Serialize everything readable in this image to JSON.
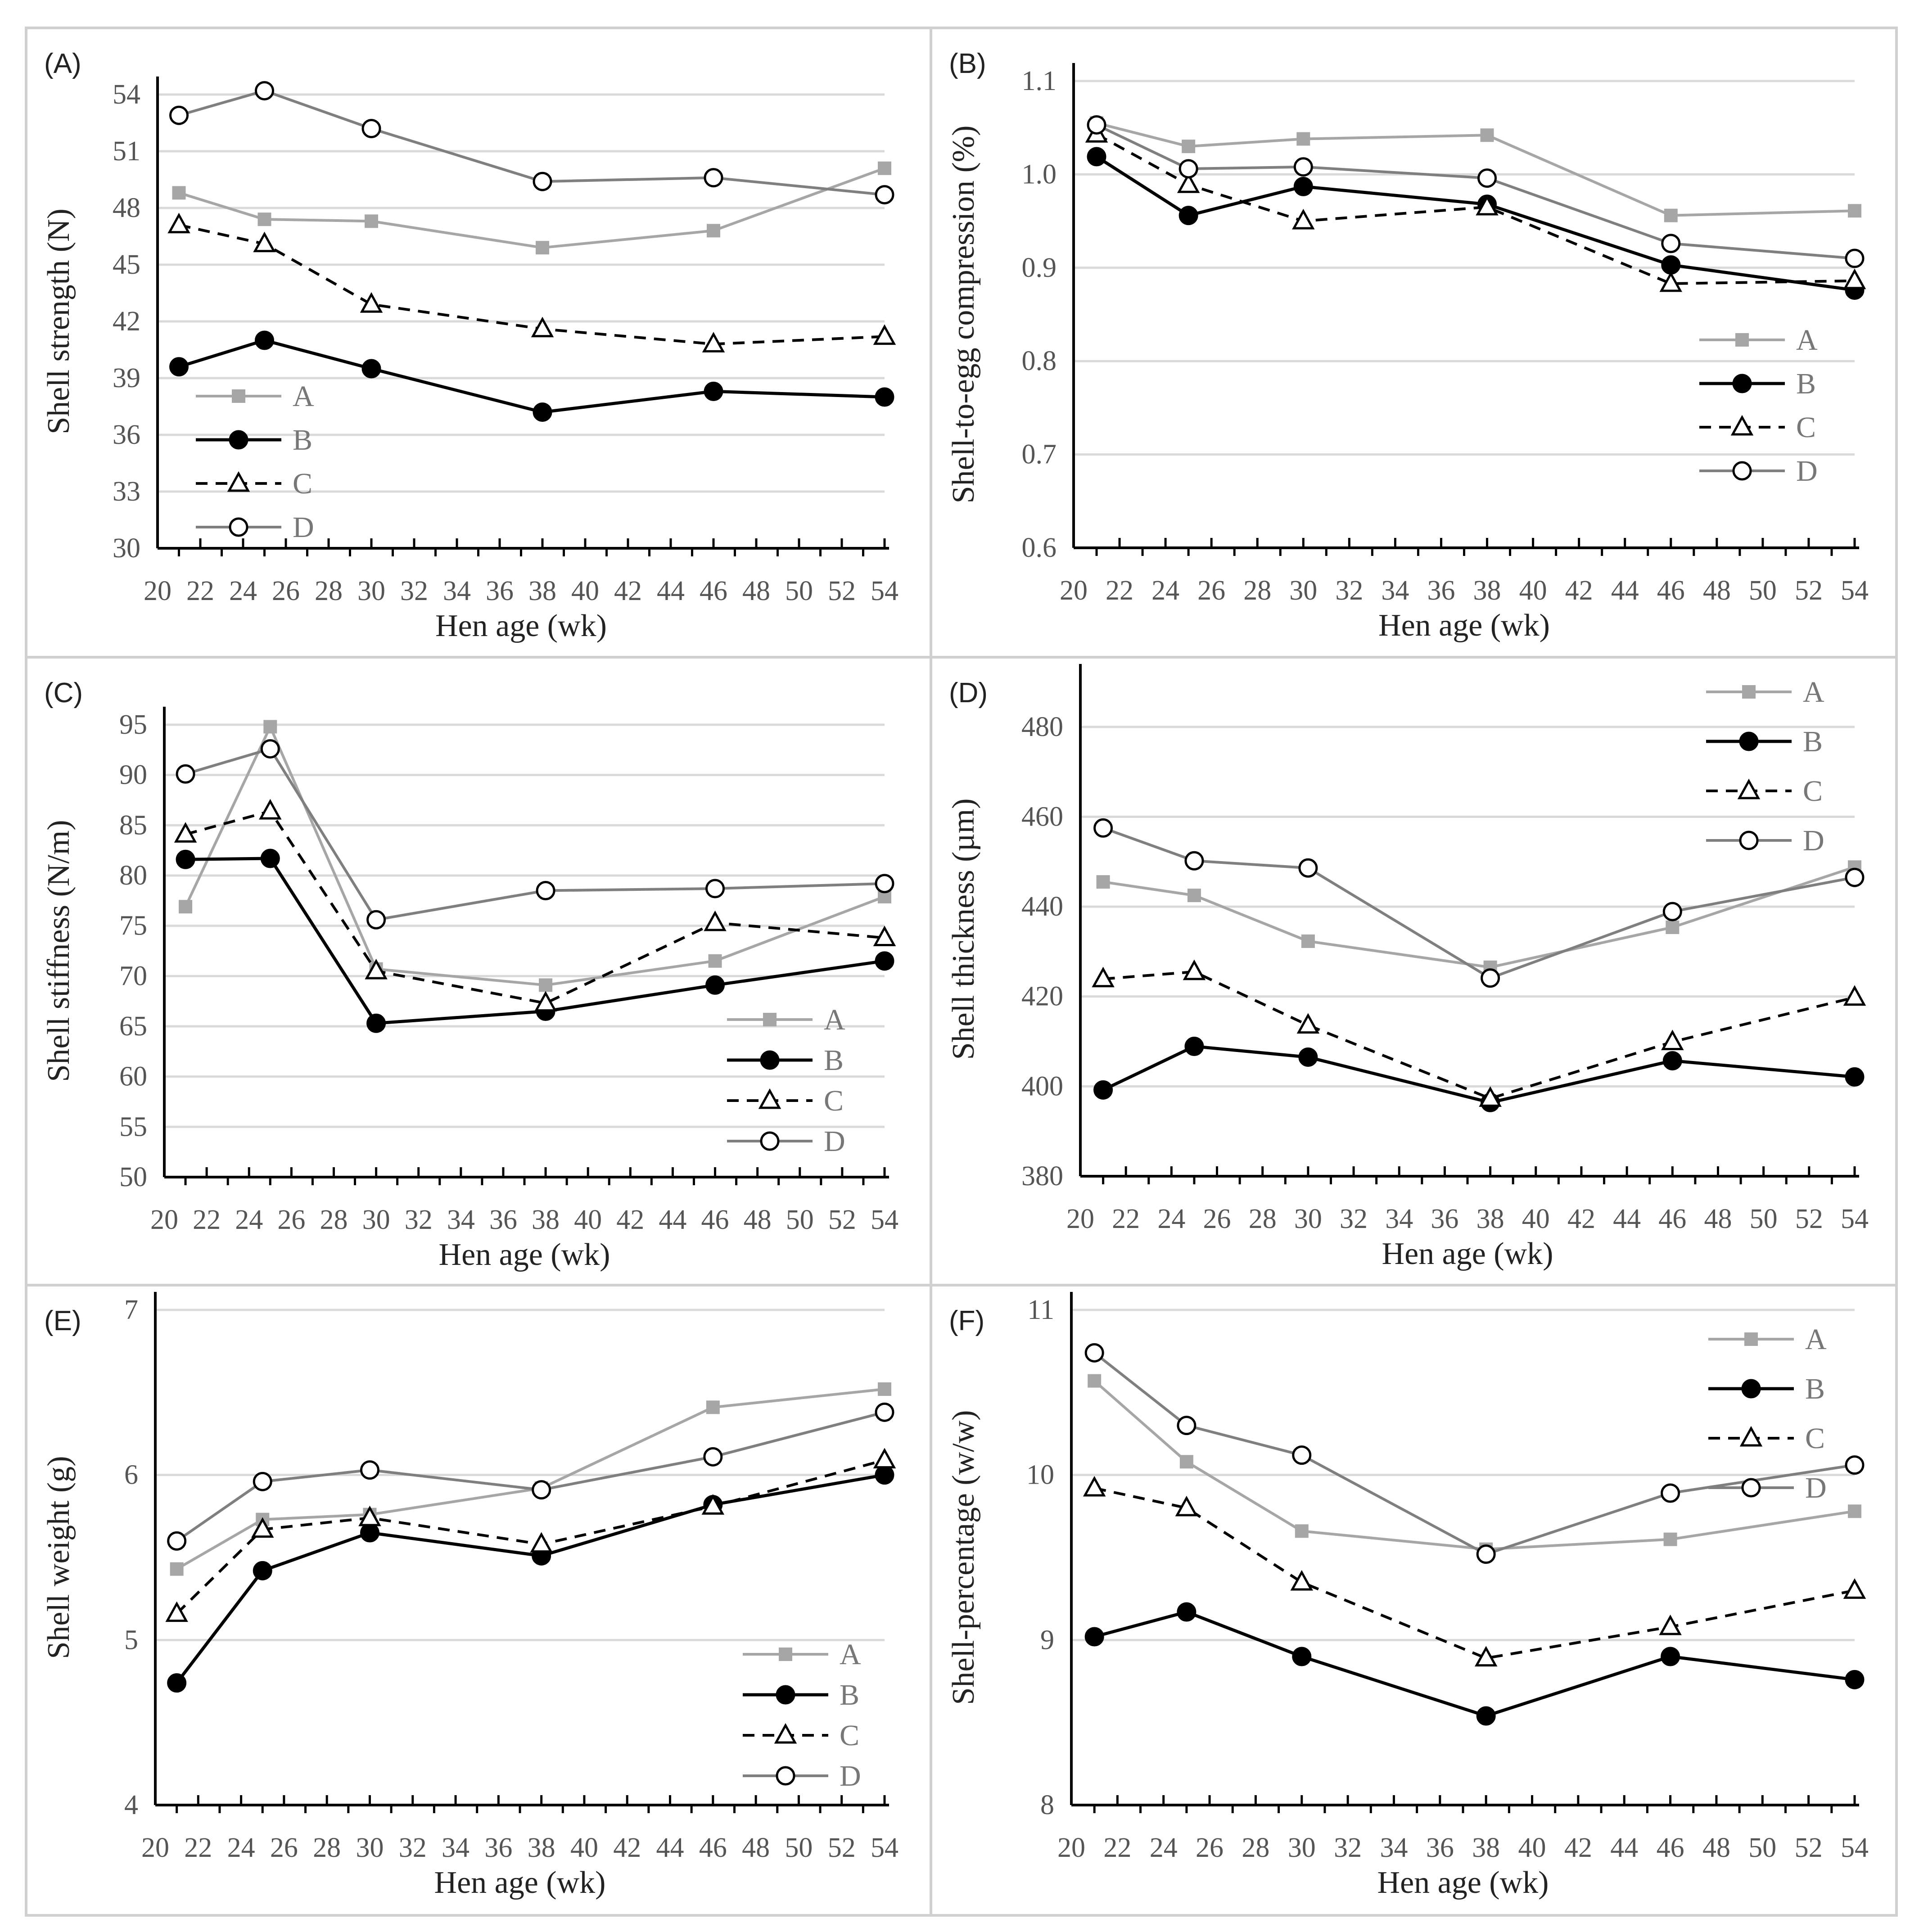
{
  "colors": {
    "series_A": "#a6a6a6",
    "series_B": "#000000",
    "series_C": "#000000",
    "series_D": "#7f7f7f",
    "grid": "#d9d9d9",
    "axis": "#000000",
    "frame": "#d0d0d0"
  },
  "chart_data": [
    {
      "panel": "(A)",
      "type": "line",
      "ylabel": "Shell strength (N)",
      "xlabel": "Hen age (wk)",
      "ylim": [
        30,
        54
      ],
      "yticks": [
        30,
        33,
        36,
        39,
        42,
        45,
        48,
        51,
        54
      ],
      "xlim": [
        20,
        54
      ],
      "xticks": [
        20,
        22,
        24,
        26,
        28,
        30,
        32,
        34,
        36,
        38,
        40,
        42,
        44,
        46,
        48,
        50,
        52,
        54
      ],
      "x": [
        21,
        25,
        30,
        38,
        46,
        54
      ],
      "legend": "left",
      "series": [
        {
          "name": "A",
          "values": [
            48.8,
            47.4,
            47.3,
            45.9,
            46.8,
            50.1
          ]
        },
        {
          "name": "B",
          "values": [
            39.6,
            41.0,
            39.5,
            37.2,
            38.3,
            38.0
          ]
        },
        {
          "name": "C",
          "values": [
            47.1,
            46.1,
            42.9,
            41.6,
            40.8,
            41.2
          ]
        },
        {
          "name": "D",
          "values": [
            52.9,
            54.2,
            52.2,
            49.4,
            49.6,
            48.7
          ]
        }
      ]
    },
    {
      "panel": "(B)",
      "type": "line",
      "ylabel": "Shell-to-egg compression (%)",
      "xlabel": "Hen age (wk)",
      "ylim": [
        0.6,
        1.1
      ],
      "yticks": [
        0.6,
        0.7,
        0.8,
        0.9,
        1.0,
        1.1
      ],
      "ytick_decimals": 1,
      "xlim": [
        20,
        54
      ],
      "xticks": [
        20,
        22,
        24,
        26,
        28,
        30,
        32,
        34,
        36,
        38,
        40,
        42,
        44,
        46,
        48,
        50,
        52,
        54
      ],
      "x": [
        21,
        25,
        30,
        38,
        46,
        54
      ],
      "legend": "right",
      "series": [
        {
          "name": "A",
          "values": [
            1.055,
            1.03,
            1.038,
            1.042,
            0.956,
            0.961
          ]
        },
        {
          "name": "B",
          "values": [
            1.019,
            0.956,
            0.987,
            0.968,
            0.903,
            0.876
          ]
        },
        {
          "name": "C",
          "values": [
            1.043,
            0.989,
            0.95,
            0.965,
            0.883,
            0.886
          ]
        },
        {
          "name": "D",
          "values": [
            1.053,
            1.006,
            1.008,
            0.996,
            0.926,
            0.91
          ]
        }
      ]
    },
    {
      "panel": "(C)",
      "type": "line",
      "ylabel": "Shell stiffness (N/m)",
      "xlabel": "Hen age (wk)",
      "ylim": [
        50,
        95
      ],
      "yticks": [
        50,
        55,
        60,
        65,
        70,
        75,
        80,
        85,
        90,
        95
      ],
      "xlim": [
        20,
        54
      ],
      "xticks": [
        20,
        22,
        24,
        26,
        28,
        30,
        32,
        34,
        36,
        38,
        40,
        42,
        44,
        46,
        48,
        50,
        52,
        54
      ],
      "x": [
        21,
        25,
        30,
        38,
        46,
        54
      ],
      "legend": "right",
      "series": [
        {
          "name": "A",
          "values": [
            76.9,
            94.8,
            70.7,
            69.1,
            71.5,
            77.9
          ]
        },
        {
          "name": "B",
          "values": [
            81.6,
            81.7,
            65.3,
            66.5,
            69.1,
            71.5
          ]
        },
        {
          "name": "C",
          "values": [
            84.1,
            86.4,
            70.5,
            67.3,
            75.3,
            73.8
          ]
        },
        {
          "name": "D",
          "values": [
            90.1,
            92.6,
            75.6,
            78.5,
            78.7,
            79.2
          ]
        }
      ]
    },
    {
      "panel": "(D)",
      "type": "line",
      "ylabel": "Shell thickness (µm)",
      "xlabel": "Hen age (wk)",
      "ylim": [
        380,
        490
      ],
      "yticks": [
        380,
        400,
        420,
        440,
        460,
        480
      ],
      "xlim": [
        20,
        54
      ],
      "xticks": [
        20,
        22,
        24,
        26,
        28,
        30,
        32,
        34,
        36,
        38,
        40,
        42,
        44,
        46,
        48,
        50,
        52,
        54
      ],
      "x": [
        21,
        25,
        30,
        38,
        46,
        54
      ],
      "legend": "top-right",
      "series": [
        {
          "name": "A",
          "values": [
            445.5,
            442.5,
            432.3,
            426.5,
            435.4,
            448.8
          ]
        },
        {
          "name": "B",
          "values": [
            399.2,
            408.9,
            406.5,
            396.4,
            405.7,
            402.1
          ]
        },
        {
          "name": "C",
          "values": [
            423.9,
            425.5,
            413.6,
            397.3,
            409.9,
            419.8
          ]
        },
        {
          "name": "D",
          "values": [
            457.5,
            450.2,
            448.6,
            424.1,
            438.9,
            446.5
          ]
        }
      ]
    },
    {
      "panel": "(E)",
      "type": "line",
      "ylabel": "Shell weight (g)",
      "xlabel": "Hen age (wk)",
      "ylim": [
        4,
        7
      ],
      "yticks": [
        4,
        5,
        6,
        7
      ],
      "xlim": [
        20,
        54
      ],
      "xticks": [
        20,
        22,
        24,
        26,
        28,
        30,
        32,
        34,
        36,
        38,
        40,
        42,
        44,
        46,
        48,
        50,
        52,
        54
      ],
      "x": [
        21,
        25,
        30,
        38,
        46,
        54
      ],
      "legend": "right",
      "series": [
        {
          "name": "A",
          "values": [
            5.43,
            5.73,
            5.76,
            5.92,
            6.41,
            6.52
          ]
        },
        {
          "name": "B",
          "values": [
            4.74,
            5.42,
            5.65,
            5.51,
            5.82,
            6.0
          ]
        },
        {
          "name": "C",
          "values": [
            5.16,
            5.67,
            5.74,
            5.58,
            5.81,
            6.09
          ]
        },
        {
          "name": "D",
          "values": [
            5.6,
            5.96,
            6.03,
            5.91,
            6.11,
            6.38
          ]
        }
      ]
    },
    {
      "panel": "(F)",
      "type": "line",
      "ylabel": "Shell-percentage (w/w)",
      "xlabel": "Hen age (wk)",
      "ylim": [
        8,
        11
      ],
      "yticks": [
        8,
        9,
        10,
        11
      ],
      "xlim": [
        20,
        54
      ],
      "xticks": [
        20,
        22,
        24,
        26,
        28,
        30,
        32,
        34,
        36,
        38,
        40,
        42,
        44,
        46,
        48,
        50,
        52,
        54
      ],
      "x": [
        21,
        25,
        30,
        38,
        46,
        54
      ],
      "legend": "top-right",
      "series": [
        {
          "name": "A",
          "values": [
            10.57,
            10.08,
            9.66,
            9.55,
            9.61,
            9.78
          ]
        },
        {
          "name": "B",
          "values": [
            9.02,
            9.17,
            8.9,
            8.54,
            8.9,
            8.76
          ]
        },
        {
          "name": "C",
          "values": [
            9.92,
            9.8,
            9.35,
            8.89,
            9.08,
            9.3
          ]
        },
        {
          "name": "D",
          "values": [
            10.74,
            10.3,
            10.12,
            9.52,
            9.89,
            10.06
          ]
        }
      ]
    }
  ]
}
